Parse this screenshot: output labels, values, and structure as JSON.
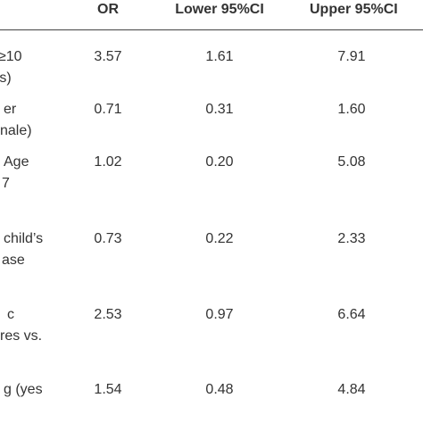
{
  "table": {
    "headers": {
      "or": "OR",
      "lower": "Lower 95%CI",
      "upper": "Upper 95%CI"
    },
    "rows": [
      {
        "label": [
          "≥10",
          "rs)"
        ],
        "or": "3.57",
        "lower": "1.61",
        "upper": "7.91"
      },
      {
        "label": [
          "er",
          "nale)"
        ],
        "or": "0.71",
        "lower": "0.31",
        "upper": "1.60"
      },
      {
        "label": [
          "Age",
          "7"
        ],
        "or": "1.02",
        "lower": "0.20",
        "upper": "5.08"
      },
      {
        "label": [
          "child’s",
          "ase"
        ],
        "or": "0.73",
        "lower": "0.22",
        "upper": "2.33"
      },
      {
        "label": [
          "c",
          "res vs."
        ],
        "or": "2.53",
        "lower": "0.97",
        "upper": "6.64"
      },
      {
        "label": [
          "g (yes"
        ],
        "or": "1.54",
        "lower": "0.48",
        "upper": "4.84"
      }
    ]
  }
}
